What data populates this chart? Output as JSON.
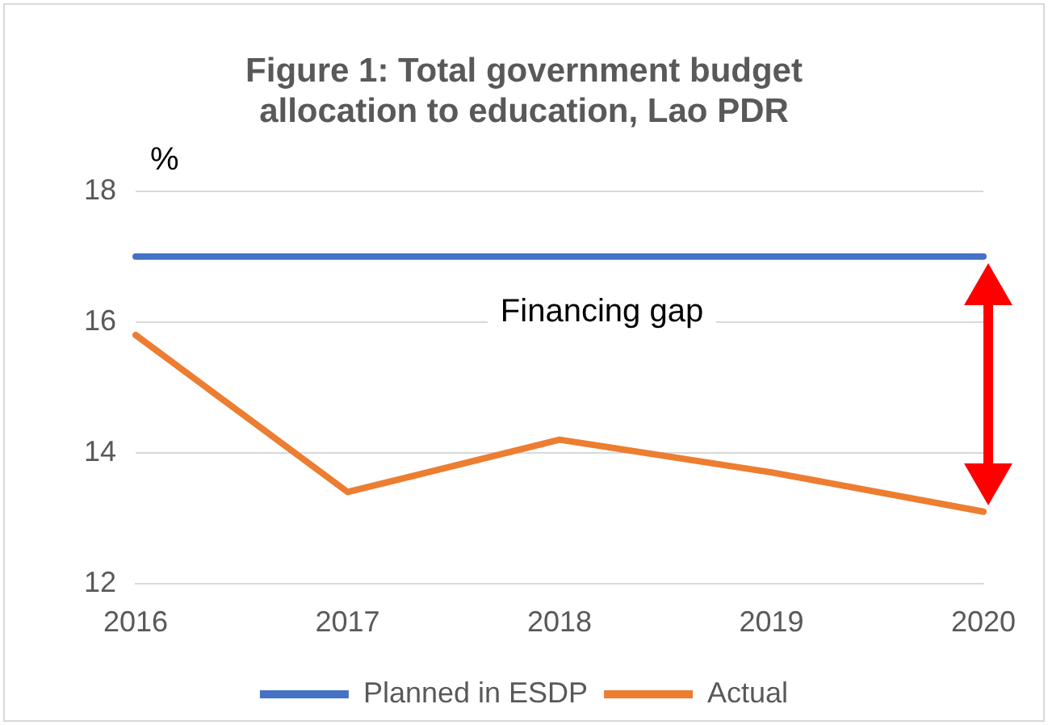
{
  "chart_data": {
    "type": "line",
    "title": [
      "Figure 1: Total government budget",
      "allocation to education, Lao PDR"
    ],
    "ylabel": "%",
    "categories": [
      "2016",
      "2017",
      "2018",
      "2019",
      "2020"
    ],
    "series": [
      {
        "name": "Planned in ESDP",
        "color": "#4472c4",
        "values": [
          17,
          17,
          17,
          17,
          17
        ]
      },
      {
        "name": "Actual",
        "color": "#ed7d31",
        "values": [
          15.8,
          13.4,
          14.2,
          13.7,
          13.1
        ]
      }
    ],
    "ylim": [
      12,
      18
    ],
    "yticks": [
      12,
      14,
      16,
      18
    ],
    "grid": "y",
    "legend": "bottom",
    "marker": "none",
    "line_style": "solid",
    "annotations": [
      "Financing gap"
    ]
  }
}
